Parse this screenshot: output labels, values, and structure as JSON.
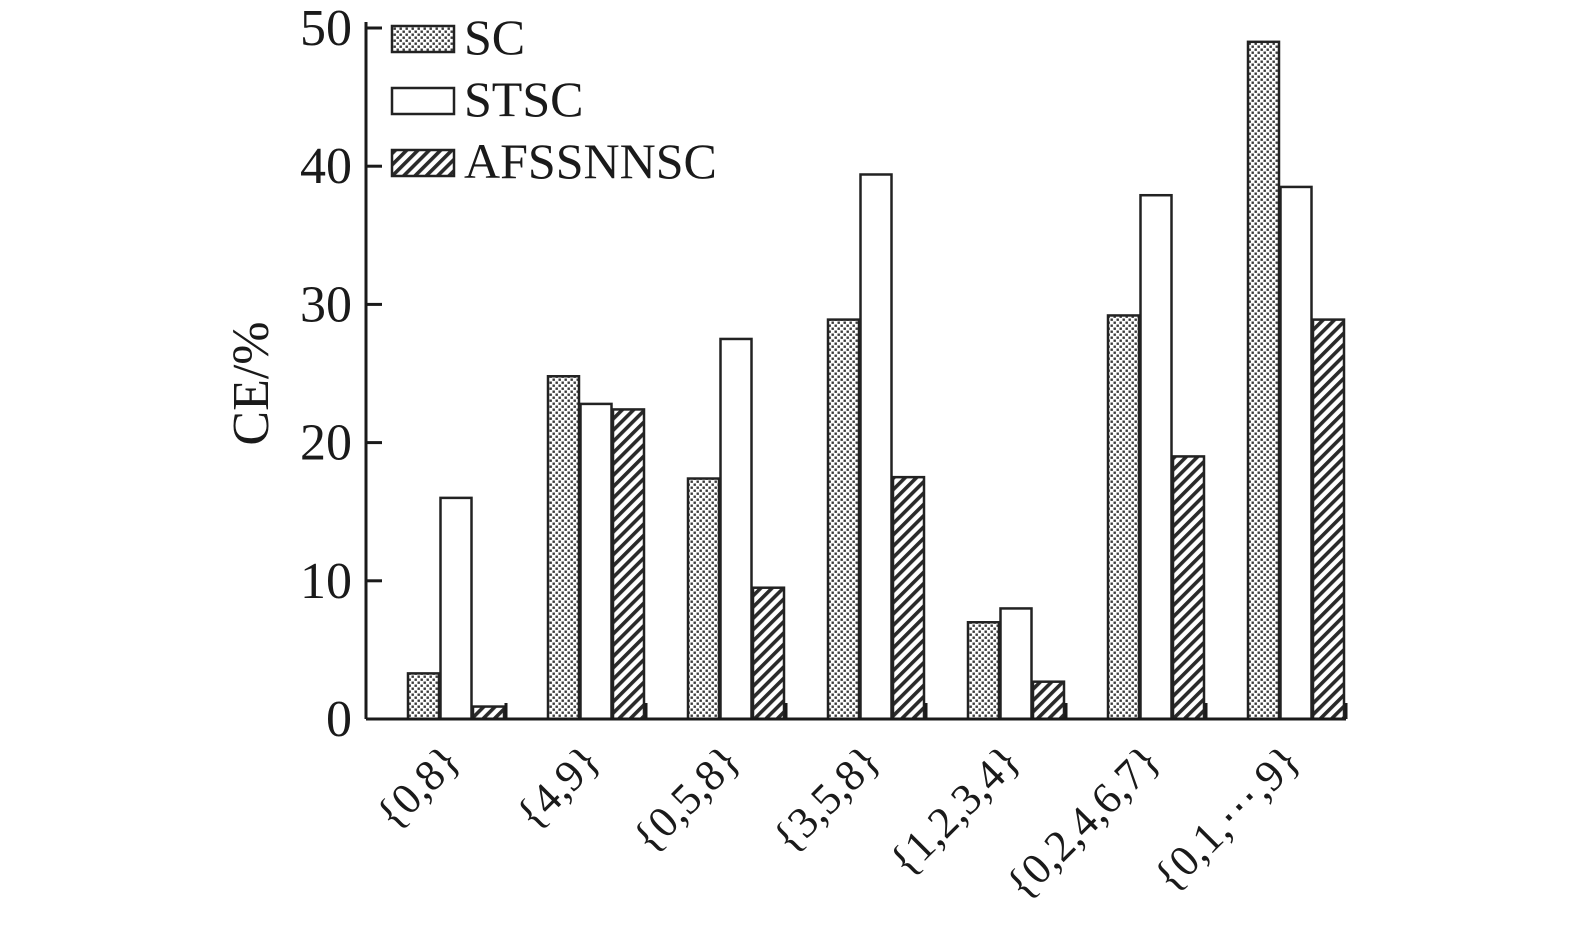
{
  "chart_data": {
    "type": "bar",
    "ylabel": "CE/%",
    "xlabel": "",
    "ylim": [
      0,
      50
    ],
    "yticks": [
      0,
      10,
      20,
      30,
      40,
      50
    ],
    "categories": [
      "{0,8}",
      "{4,9}",
      "{0,5,8}",
      "{3,5,8}",
      "{1,2,3,4}",
      "{0,2,4,6,7}",
      "{0,1,⋯,9}"
    ],
    "series": [
      {
        "name": "SC",
        "values": [
          3.3,
          24.8,
          17.4,
          28.9,
          7.0,
          29.2,
          49.0
        ],
        "pattern": "dots"
      },
      {
        "name": "STSC",
        "values": [
          16.0,
          22.8,
          27.5,
          39.4,
          8.0,
          37.9,
          38.5
        ],
        "pattern": "none"
      },
      {
        "name": "AFSSNNSC",
        "values": [
          0.9,
          22.4,
          9.5,
          17.5,
          2.7,
          19.0,
          28.9
        ],
        "pattern": "hatch"
      }
    ],
    "legend_position": "top-left",
    "grid": false
  }
}
